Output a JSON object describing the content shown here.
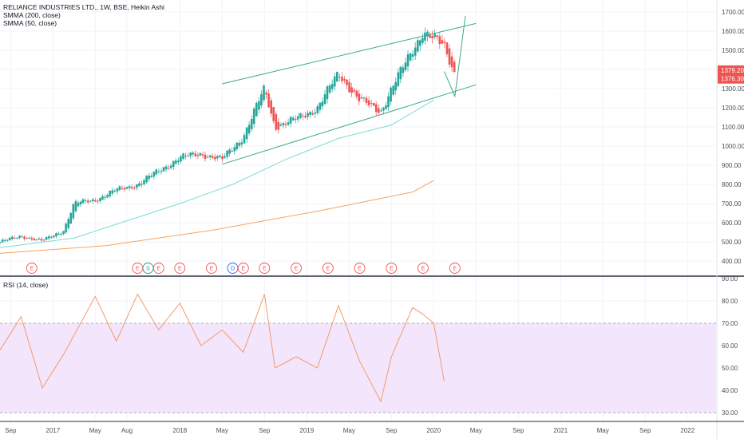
{
  "main_legend": {
    "title": "RELIANCE INDUSTRIES LTD., 1W, BSE, Heikin Ashi",
    "indicator1": "SMMA (200, close)",
    "indicator2": "SMMA (50, close)"
  },
  "rsi_legend": {
    "title": "RSI (14, close)"
  },
  "colors": {
    "up": "#26a69a",
    "down": "#ef5350",
    "smma50": "#7fdad3",
    "smma200": "#f7a35c",
    "rsi_line": "#f39c6b",
    "rsi_band": "#f3e5fb",
    "channel": "#3aa98a",
    "price_tag": "#ef5350"
  },
  "chart_data": [
    {
      "type": "candlestick",
      "title": "RELIANCE INDUSTRIES LTD., 1W, BSE, Heikin Ashi",
      "ylim": [
        360,
        1740
      ],
      "y_ticks": [
        "1700.00",
        "1600.00",
        "1500.00",
        "1400.00",
        "1300.00",
        "1200.00",
        "1100.00",
        "1000.00",
        "900.00",
        "800.00",
        "700.00",
        "600.00",
        "500.00",
        "400.00"
      ],
      "x_ticks": [
        "Sep",
        "2017",
        "May",
        "Aug",
        "2018",
        "May",
        "Sep",
        "2019",
        "May",
        "Sep",
        "2020",
        "May",
        "Sep",
        "2021",
        "May",
        "Sep",
        "2022"
      ],
      "last_prices": [
        "1379.20",
        "1376.30"
      ],
      "close_series": {
        "x": [
          "2016-08",
          "2016-10",
          "2016-12",
          "2017-02",
          "2017-03",
          "2017-05",
          "2017-07",
          "2017-09",
          "2017-11",
          "2018-01",
          "2018-03",
          "2018-05",
          "2018-07",
          "2018-09",
          "2018-10",
          "2018-12",
          "2019-02",
          "2019-04",
          "2019-06",
          "2019-08",
          "2019-09",
          "2019-11",
          "2019-12",
          "2020-01",
          "2020-02",
          "2020-03"
        ],
        "y": [
          500,
          530,
          505,
          560,
          700,
          720,
          770,
          800,
          870,
          940,
          960,
          930,
          1050,
          1300,
          1100,
          1140,
          1200,
          1380,
          1240,
          1180,
          1300,
          1500,
          1600,
          1560,
          1520,
          1379
        ]
      },
      "series": [
        {
          "name": "SMMA (50, close)",
          "x": [
            "2016-08",
            "2017-03",
            "2017-08",
            "2018-01",
            "2018-06",
            "2018-11",
            "2019-04",
            "2019-09",
            "2020-01"
          ],
          "values": [
            470,
            520,
            610,
            700,
            800,
            930,
            1040,
            1110,
            1240
          ]
        },
        {
          "name": "SMMA (200, close)",
          "x": [
            "2016-08",
            "2017-06",
            "2018-04",
            "2019-02",
            "2019-11",
            "2020-01"
          ],
          "values": [
            440,
            480,
            560,
            660,
            760,
            820
          ]
        }
      ],
      "annotations": {
        "channel_upper": {
          "x": [
            "2018-05",
            "2020-05"
          ],
          "y": [
            1325,
            1640
          ]
        },
        "channel_lower": {
          "x": [
            "2018-05",
            "2020-05"
          ],
          "y": [
            905,
            1320
          ]
        },
        "projection": {
          "x": [
            "2020-02",
            "2020-03",
            "2020-04"
          ],
          "y": [
            1390,
            1260,
            1680
          ]
        }
      },
      "events": [
        "E",
        "E",
        "E",
        "S",
        "E",
        "E",
        "E",
        "D",
        "E",
        "E",
        "E",
        "E",
        "E",
        "E",
        "E",
        "E"
      ]
    },
    {
      "type": "line",
      "title": "RSI (14, close)",
      "ylim": [
        27,
        92
      ],
      "y_ticks": [
        "90.00",
        "80.00",
        "70.00",
        "60.00",
        "50.00",
        "40.00",
        "30.00"
      ],
      "band": [
        30,
        70
      ],
      "x": [
        "2016-08",
        "2016-10",
        "2016-12",
        "2017-02",
        "2017-05",
        "2017-07",
        "2017-09",
        "2017-11",
        "2018-01",
        "2018-03",
        "2018-05",
        "2018-07",
        "2018-09",
        "2018-10",
        "2018-12",
        "2019-02",
        "2019-04",
        "2019-06",
        "2019-08",
        "2019-09",
        "2019-11",
        "2019-12",
        "2020-01",
        "2020-02"
      ],
      "values": [
        58,
        73,
        41,
        56,
        82,
        62,
        83,
        67,
        79,
        60,
        67,
        57,
        83,
        50,
        55,
        50,
        78,
        53,
        35,
        55,
        77,
        74,
        70,
        44
      ]
    }
  ]
}
